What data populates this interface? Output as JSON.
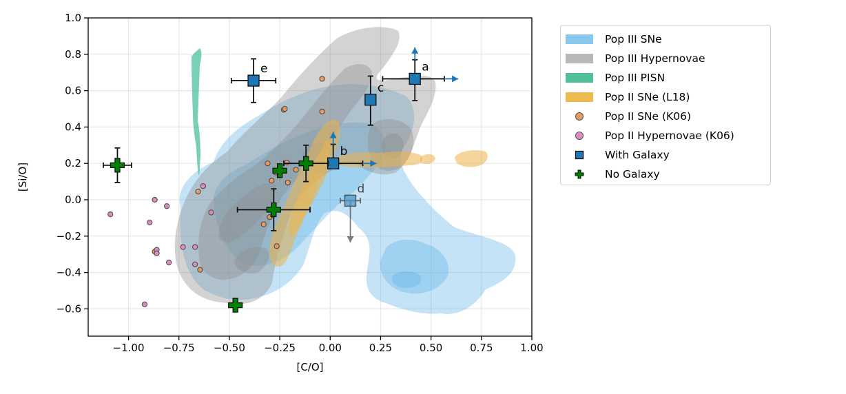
{
  "chart_data": {
    "type": "scatter",
    "title": "",
    "xlabel": "[C/O]",
    "ylabel": "[Si/O]",
    "xlim": [
      -1.2,
      1.0
    ],
    "ylim": [
      -0.75,
      1.0
    ],
    "grid": true,
    "legend_position": "outside-right-top",
    "xticks": [
      -1.0,
      -0.75,
      -0.5,
      -0.25,
      0.0,
      0.25,
      0.5,
      0.75,
      1.0
    ],
    "xtick_labels": [
      "−1.00",
      "−0.75",
      "−0.50",
      "−0.25",
      "0.00",
      "0.25",
      "0.50",
      "0.75",
      "1.00"
    ],
    "yticks": [
      1.0,
      0.8,
      0.6,
      0.4,
      0.2,
      0.0,
      -0.2,
      -0.4,
      -0.6
    ],
    "ytick_labels": [
      "1.0",
      "0.8",
      "0.6",
      "0.4",
      "0.2",
      "0.0",
      "−0.2",
      "−0.4",
      "−0.6"
    ],
    "legend": [
      {
        "label": "Pop III SNe",
        "kind": "patch",
        "color": "#88c8ee"
      },
      {
        "label": "Pop III Hypernovae",
        "kind": "patch",
        "color": "#b8b8b8"
      },
      {
        "label": "Pop III PISN",
        "kind": "patch",
        "color": "#4fbf9e"
      },
      {
        "label": "Pop II SNe (L18)",
        "kind": "patch",
        "color": "#ecbc50"
      },
      {
        "label": "Pop II SNe (K06)",
        "kind": "circle",
        "color": "#e69a62"
      },
      {
        "label": "Pop II Hypernovae (K06)",
        "kind": "circle",
        "color": "#d98fbd"
      },
      {
        "label": "With Galaxy",
        "kind": "square",
        "color": "#1f77b4"
      },
      {
        "label": "No Galaxy",
        "kind": "plus",
        "color": "#008000"
      }
    ],
    "series": [
      {
        "name": "With Galaxy",
        "marker": "square",
        "color": "#1f77b4",
        "points": [
          {
            "label": "a",
            "x": 0.42,
            "y": 0.665,
            "xerr": [
              0.16,
              null
            ],
            "yerr": [
              0.12,
              null
            ],
            "x_lower_limit": true,
            "y_lower_limit": true
          },
          {
            "label": "b",
            "x": 0.015,
            "y": 0.2,
            "xerr": [
              0.0,
              null
            ],
            "yerr": [
              0.02,
              null
            ],
            "x_lower_limit": true,
            "y_lower_limit": true
          },
          {
            "label": "c",
            "x": 0.2,
            "y": 0.55,
            "xerr": [
              0.015,
              0.015
            ],
            "yerr": [
              0.14,
              0.13
            ],
            "x_lower_limit": false,
            "y_lower_limit": false
          },
          {
            "label": "d",
            "x": 0.1,
            "y": -0.005,
            "xerr": [
              0.05,
              0.05
            ],
            "yerr": [
              null,
              null
            ],
            "y_upper_limit": true,
            "faded": true
          },
          {
            "label": "e",
            "x": -0.38,
            "y": 0.655,
            "xerr": [
              0.11,
              0.11
            ],
            "yerr": [
              0.12,
              0.12
            ]
          }
        ]
      },
      {
        "name": "No Galaxy",
        "marker": "plus",
        "color": "#008000",
        "points": [
          {
            "x": -1.055,
            "y": 0.19,
            "xerr": [
              0.07,
              0.07
            ],
            "yerr": [
              0.095,
              0.095
            ]
          },
          {
            "x": -0.25,
            "y": 0.16,
            "xerr": [
              0.0,
              0.0
            ],
            "yerr": [
              0.0,
              0.0
            ]
          },
          {
            "x": -0.12,
            "y": 0.2,
            "xerr": [
              0.11,
              0.11
            ],
            "yerr": [
              0.1,
              0.1
            ]
          },
          {
            "x": -0.28,
            "y": -0.055,
            "xerr": [
              0.18,
              0.18
            ],
            "yerr": [
              0.115,
              0.115
            ]
          },
          {
            "x": -0.47,
            "y": -0.58,
            "xerr": [
              0.0,
              0.0
            ],
            "yerr": [
              0.0,
              0.0
            ]
          }
        ]
      },
      {
        "name": "Pop II SNe (K06)",
        "marker": "circle",
        "color": "#e69a62",
        "points": [
          {
            "x": -0.04,
            "y": 0.665
          },
          {
            "x": -0.23,
            "y": 0.495
          },
          {
            "x": -0.225,
            "y": 0.5
          },
          {
            "x": -0.04,
            "y": 0.485
          },
          {
            "x": -0.31,
            "y": 0.2
          },
          {
            "x": -0.215,
            "y": 0.205
          },
          {
            "x": -0.29,
            "y": 0.105
          },
          {
            "x": -0.21,
            "y": 0.095
          },
          {
            "x": -0.27,
            "y": 0.15
          },
          {
            "x": -0.3,
            "y": -0.095
          },
          {
            "x": -0.33,
            "y": -0.135
          },
          {
            "x": -0.285,
            "y": -0.085
          },
          {
            "x": -0.655,
            "y": 0.045
          },
          {
            "x": -0.87,
            "y": -0.285
          },
          {
            "x": -0.645,
            "y": -0.385
          },
          {
            "x": -0.265,
            "y": -0.255
          },
          {
            "x": -0.17,
            "y": 0.165
          }
        ]
      },
      {
        "name": "Pop II Hypernovae (K06)",
        "marker": "circle",
        "color": "#d98fbd",
        "points": [
          {
            "x": -1.09,
            "y": -0.08
          },
          {
            "x": -0.87,
            "y": 0.0
          },
          {
            "x": -0.81,
            "y": -0.035
          },
          {
            "x": -0.895,
            "y": -0.125
          },
          {
            "x": -0.86,
            "y": -0.275
          },
          {
            "x": -0.86,
            "y": -0.295
          },
          {
            "x": -0.8,
            "y": -0.345
          },
          {
            "x": -0.73,
            "y": -0.26
          },
          {
            "x": -0.67,
            "y": -0.26
          },
          {
            "x": -0.67,
            "y": -0.355
          },
          {
            "x": -0.92,
            "y": -0.575
          },
          {
            "x": -0.63,
            "y": 0.075
          },
          {
            "x": -0.59,
            "y": -0.07
          }
        ]
      }
    ]
  }
}
